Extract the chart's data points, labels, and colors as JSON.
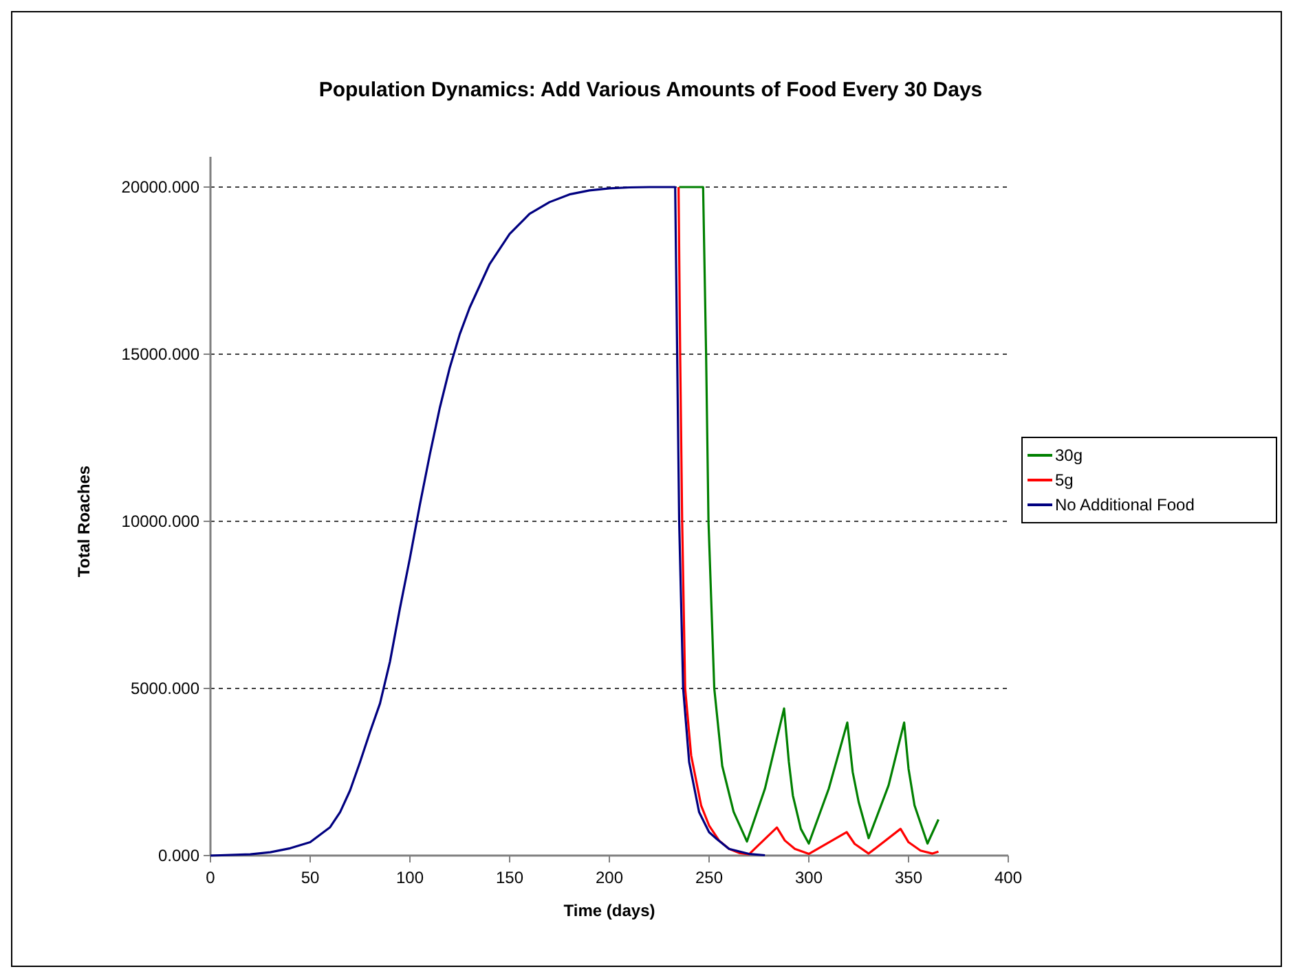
{
  "chart_data": {
    "type": "line",
    "title": "Population Dynamics: Add Various Amounts of Food Every 30 Days",
    "xlabel": "Time (days)",
    "ylabel": "Total Roaches",
    "xlim": [
      0,
      400
    ],
    "xticks": [
      0,
      50,
      100,
      150,
      200,
      250,
      300,
      350,
      400
    ],
    "ylim": [
      0,
      20000
    ],
    "yticks": [
      {
        "value": 0,
        "label": "0.000"
      },
      {
        "value": 5000,
        "label": "5000.000"
      },
      {
        "value": 10000,
        "label": "10000.000"
      },
      {
        "value": 15000,
        "label": "15000.000"
      },
      {
        "value": 20000,
        "label": "20000.000"
      }
    ],
    "grid": "y",
    "legend": "right",
    "line_style": "solid",
    "marker": "none",
    "series": [
      {
        "name": "30g",
        "color": "#008000",
        "x": [
          235,
          240,
          247,
          248.5,
          249.7,
          252.6,
          256.6,
          262.3,
          269,
          278,
          287.6,
          290,
          292,
          296,
          300,
          310,
          319.3,
          322,
          325,
          330,
          340,
          347.8,
          350,
          353,
          359.5,
          365
        ],
        "values": [
          20000,
          20000,
          20000,
          15000,
          10000,
          5000,
          2680,
          1310,
          420,
          2000,
          4400,
          2800,
          1800,
          800,
          360,
          2000,
          3980,
          2500,
          1600,
          520,
          2100,
          3980,
          2600,
          1500,
          360,
          1080
        ]
      },
      {
        "name": "5g",
        "color": "#ff0000",
        "x": [
          234.7,
          235.5,
          236.5,
          238,
          241,
          246,
          250,
          255,
          260,
          265,
          270,
          284,
          288,
          293,
          300,
          319,
          323,
          330,
          346,
          350,
          356,
          362,
          365
        ],
        "values": [
          20000,
          15000,
          10000,
          5000,
          3000,
          1500,
          900,
          450,
          200,
          80,
          40,
          840,
          450,
          200,
          50,
          700,
          350,
          60,
          800,
          400,
          150,
          60,
          120
        ]
      },
      {
        "name": "No Additional Food",
        "color": "#000080",
        "x": [
          0,
          20,
          30,
          40,
          50,
          60,
          65,
          70,
          75,
          80,
          85,
          90,
          95,
          100,
          105,
          110,
          115,
          120,
          125,
          130,
          140,
          150,
          160,
          170,
          180,
          190,
          200,
          210,
          220,
          233,
          234,
          235,
          237,
          240,
          245,
          250,
          254,
          260,
          270,
          278
        ],
        "values": [
          0,
          40,
          100,
          220,
          400,
          850,
          1300,
          1950,
          2800,
          3700,
          4550,
          5800,
          7400,
          8900,
          10500,
          12000,
          13400,
          14600,
          15600,
          16400,
          17700,
          18600,
          19200,
          19550,
          19780,
          19900,
          19960,
          19990,
          20000,
          20000,
          15000,
          10000,
          5000,
          2800,
          1300,
          700,
          490,
          200,
          50,
          10
        ]
      }
    ]
  }
}
